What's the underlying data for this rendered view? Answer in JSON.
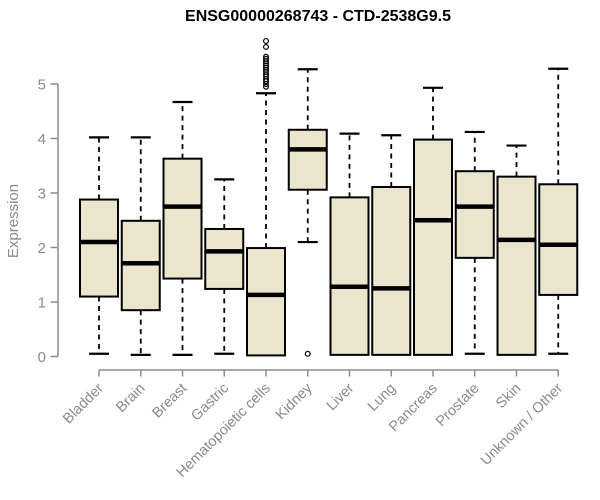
{
  "chart_data": {
    "type": "boxplot",
    "title": "ENSG00000268743 - CTD-2538G9.5",
    "ylabel": "Expression",
    "xlabel": "",
    "ylim": [
      0,
      5.9
    ],
    "yticks": [
      0,
      1,
      2,
      3,
      4,
      5
    ],
    "grid": false,
    "legend": "none",
    "categories": [
      "Bladder",
      "Brain",
      "Breast",
      "Gastric",
      "Hematopoietic cells",
      "Kidney",
      "Liver",
      "Lung",
      "Pancreas",
      "Prostate",
      "Skin",
      "Unknown / Other"
    ],
    "series": [
      {
        "name": "Bladder",
        "whisker_low": 0.05,
        "q1": 1.1,
        "median": 2.1,
        "q3": 2.88,
        "whisker_high": 4.02,
        "outliers": []
      },
      {
        "name": "Brain",
        "whisker_low": 0.03,
        "q1": 0.85,
        "median": 1.71,
        "q3": 2.49,
        "whisker_high": 4.02,
        "outliers": []
      },
      {
        "name": "Breast",
        "whisker_low": 0.03,
        "q1": 1.43,
        "median": 2.75,
        "q3": 3.63,
        "whisker_high": 4.67,
        "outliers": []
      },
      {
        "name": "Gastric",
        "whisker_low": 0.05,
        "q1": 1.24,
        "median": 1.93,
        "q3": 2.34,
        "whisker_high": 3.25,
        "outliers": []
      },
      {
        "name": "Hematopoietic cells",
        "whisker_low": 0.02,
        "q1": 0.02,
        "median": 1.13,
        "q3": 1.99,
        "whisker_high": 4.83,
        "outliers": [
          4.95,
          5.0,
          5.05,
          5.09,
          5.14,
          5.18,
          5.22,
          5.26,
          5.3,
          5.34,
          5.38,
          5.42,
          5.46,
          5.5,
          5.68,
          5.79
        ]
      },
      {
        "name": "Kidney",
        "whisker_low": 2.1,
        "q1": 3.06,
        "median": 3.8,
        "q3": 4.16,
        "whisker_high": 5.27,
        "outliers": [
          0.05
        ]
      },
      {
        "name": "Liver",
        "whisker_low": 0.03,
        "q1": 0.03,
        "median": 1.28,
        "q3": 2.92,
        "whisker_high": 4.09,
        "outliers": []
      },
      {
        "name": "Lung",
        "whisker_low": 0.03,
        "q1": 0.03,
        "median": 1.25,
        "q3": 3.11,
        "whisker_high": 4.06,
        "outliers": []
      },
      {
        "name": "Pancreas",
        "whisker_low": 0.03,
        "q1": 0.03,
        "median": 2.5,
        "q3": 3.98,
        "whisker_high": 4.93,
        "outliers": []
      },
      {
        "name": "Prostate",
        "whisker_low": 0.05,
        "q1": 1.81,
        "median": 2.75,
        "q3": 3.4,
        "whisker_high": 4.12,
        "outliers": []
      },
      {
        "name": "Skin",
        "whisker_low": 0.03,
        "q1": 0.03,
        "median": 2.14,
        "q3": 3.3,
        "whisker_high": 3.87,
        "outliers": []
      },
      {
        "name": "Unknown / Other",
        "whisker_low": 0.05,
        "q1": 1.13,
        "median": 2.05,
        "q3": 3.16,
        "whisker_high": 5.28,
        "outliers": []
      }
    ],
    "colors": {
      "box_fill": "#EBE5CD",
      "box_border": "#000000",
      "median": "#000000",
      "whisker": "#000000",
      "axis": "#8C8C8C",
      "tick_label": "#8A8A8A",
      "title": "#000000"
    }
  }
}
